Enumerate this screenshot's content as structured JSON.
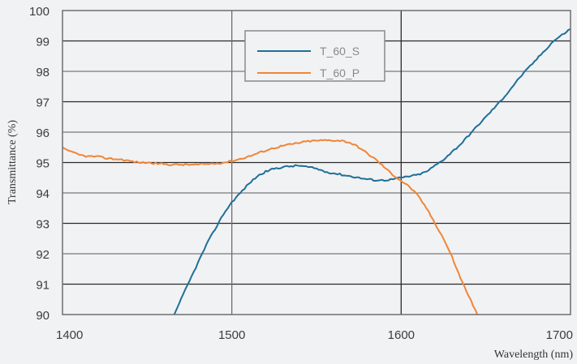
{
  "chart_data": {
    "type": "line",
    "title": "",
    "xlabel": "Wavelength (nm)",
    "ylabel": "Transmittance (%)",
    "xlim": [
      1400,
      1700
    ],
    "ylim": [
      90,
      100
    ],
    "xticks": [
      1400,
      1500,
      1600,
      1700
    ],
    "yticks": [
      90,
      91,
      92,
      93,
      94,
      95,
      96,
      97,
      98,
      99,
      100
    ],
    "grid": true,
    "legend_position": "upper-center",
    "series": [
      {
        "name": "T_60_S",
        "color": "#1f6f98",
        "x": [
          1466,
          1470,
          1475,
          1480,
          1485,
          1490,
          1495,
          1500,
          1505,
          1510,
          1515,
          1520,
          1525,
          1530,
          1535,
          1540,
          1545,
          1550,
          1555,
          1560,
          1565,
          1570,
          1575,
          1580,
          1585,
          1590,
          1595,
          1600,
          1605,
          1610,
          1615,
          1620,
          1625,
          1630,
          1635,
          1640,
          1645,
          1650,
          1655,
          1660,
          1665,
          1670,
          1675,
          1680,
          1685,
          1690,
          1695,
          1700,
          1705
        ],
        "y": [
          90.0,
          90.5,
          91.1,
          91.7,
          92.3,
          92.8,
          93.3,
          93.7,
          94.0,
          94.3,
          94.55,
          94.7,
          94.8,
          94.85,
          94.88,
          94.9,
          94.85,
          94.8,
          94.7,
          94.65,
          94.6,
          94.55,
          94.5,
          94.45,
          94.42,
          94.42,
          94.45,
          94.5,
          94.55,
          94.6,
          94.7,
          94.9,
          95.1,
          95.35,
          95.6,
          95.9,
          96.2,
          96.5,
          96.8,
          97.1,
          97.45,
          97.8,
          98.1,
          98.4,
          98.7,
          99.0,
          99.2,
          99.4,
          99.45
        ]
      },
      {
        "name": "T_60_P",
        "color": "#f08537",
        "x": [
          1400,
          1405,
          1410,
          1415,
          1420,
          1425,
          1430,
          1435,
          1440,
          1445,
          1450,
          1455,
          1460,
          1465,
          1470,
          1475,
          1480,
          1485,
          1490,
          1495,
          1500,
          1505,
          1510,
          1515,
          1520,
          1525,
          1530,
          1535,
          1540,
          1545,
          1550,
          1555,
          1560,
          1565,
          1570,
          1575,
          1580,
          1585,
          1590,
          1595,
          1600,
          1605,
          1610,
          1615,
          1620,
          1625,
          1630,
          1635,
          1640,
          1645
        ],
        "y": [
          95.5,
          95.35,
          95.25,
          95.2,
          95.2,
          95.15,
          95.12,
          95.1,
          95.05,
          95.0,
          95.0,
          94.97,
          94.95,
          94.93,
          94.93,
          94.93,
          94.93,
          94.95,
          94.97,
          95.0,
          95.05,
          95.12,
          95.2,
          95.3,
          95.4,
          95.48,
          95.55,
          95.6,
          95.65,
          95.7,
          95.72,
          95.73,
          95.73,
          95.72,
          95.65,
          95.5,
          95.3,
          95.1,
          94.85,
          94.6,
          94.4,
          94.2,
          93.9,
          93.5,
          93.0,
          92.5,
          91.9,
          91.2,
          90.6,
          90.0
        ]
      }
    ],
    "annotations": []
  },
  "legend": {
    "items": [
      {
        "label": "T_60_S",
        "color": "#1f6f98"
      },
      {
        "label": "T_60_P",
        "color": "#f08537"
      }
    ]
  },
  "axes": {
    "x_title": "Wavelength (nm)",
    "y_title": "Transmittance (%)"
  }
}
